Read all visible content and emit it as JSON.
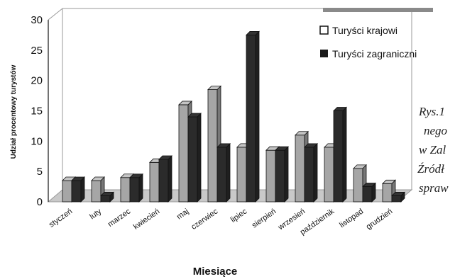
{
  "chart_data": {
    "type": "bar",
    "categories": [
      "styczeń",
      "luty",
      "marzec",
      "kwiecień",
      "maj",
      "czerwiec",
      "lipiec",
      "sierpień",
      "wrzesień",
      "październik",
      "listopad",
      "grudzień"
    ],
    "series": [
      {
        "name": "Turyści krajowi",
        "values": [
          3.5,
          3.5,
          4,
          6.5,
          16,
          18.5,
          9,
          8.5,
          11,
          9,
          5.5,
          3
        ]
      },
      {
        "name": "Turyści zagraniczni",
        "values": [
          3.5,
          1,
          4,
          7,
          14,
          9,
          27.5,
          8.5,
          9,
          15,
          2.5,
          1
        ]
      }
    ],
    "title": "",
    "xlabel": "Miesiące",
    "ylabel": "Udział procentowy turystów",
    "ylim": [
      0,
      30
    ],
    "yticks": [
      0,
      5,
      10,
      15,
      20,
      25,
      30
    ],
    "grid": false,
    "legend_position": "top-right",
    "colors": {
      "series_0": "#a6a6a6",
      "series_1": "#2b2b2b"
    }
  },
  "caption_lines": [
    "Rys.1",
    "nego",
    "w Zal",
    "Źródł",
    "spraw"
  ]
}
